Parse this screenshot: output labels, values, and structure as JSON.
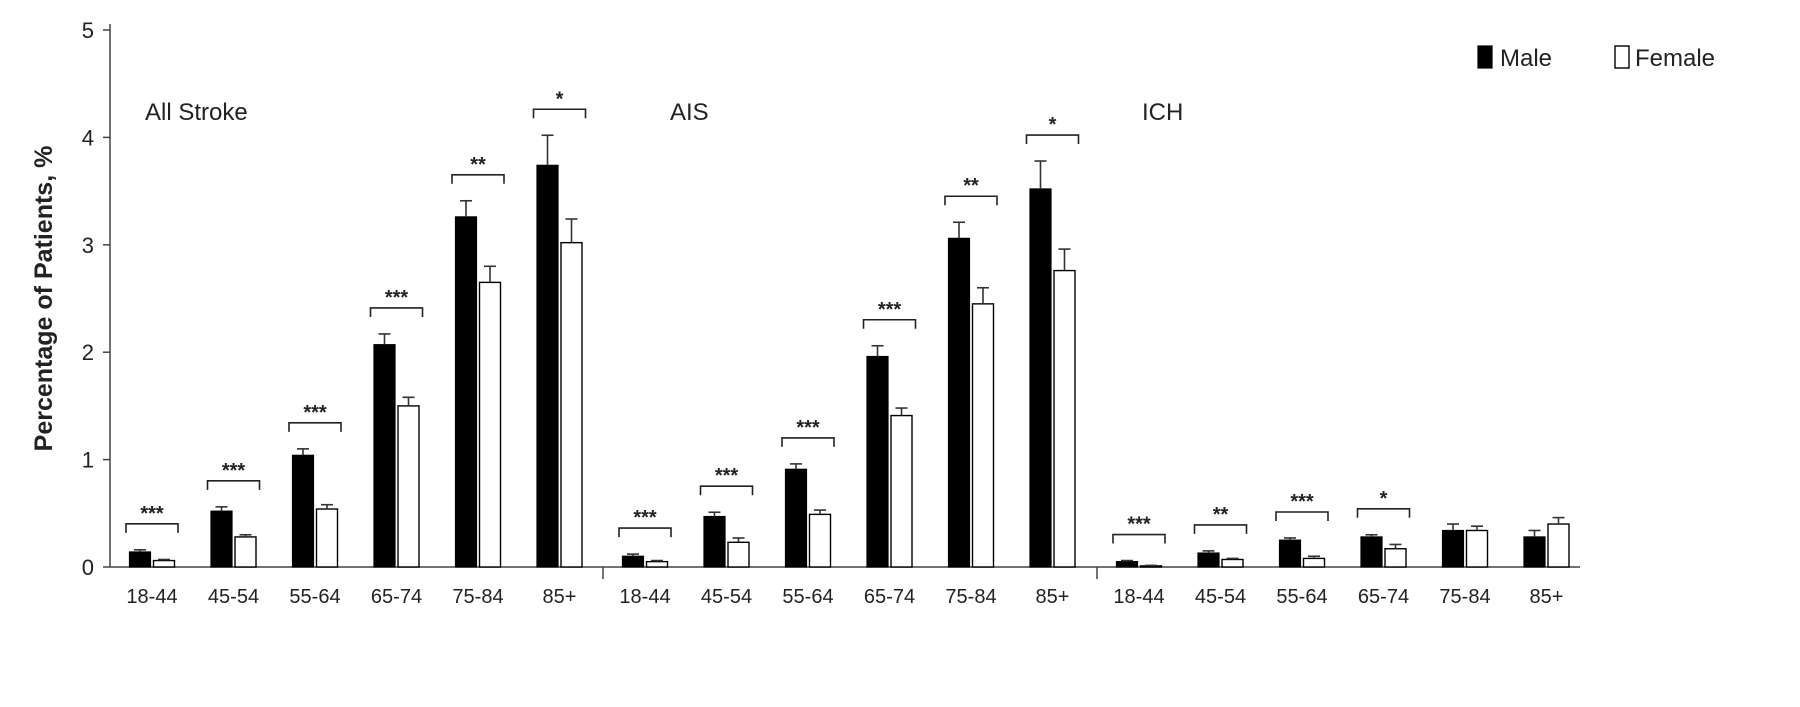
{
  "chart_data": {
    "type": "bar",
    "ylabel": "Percentage of Patients, %",
    "ylim": [
      0,
      5
    ],
    "yticks": [
      "0",
      "1",
      "2",
      "3",
      "4",
      "5"
    ],
    "grid": false,
    "legend": {
      "placement": "top-right",
      "entries": [
        {
          "name": "Male",
          "color": "#000000"
        },
        {
          "name": "Female",
          "color": "#ffffff"
        }
      ]
    },
    "categories": [
      "18-44",
      "45-54",
      "55-64",
      "65-74",
      "75-84",
      "85+"
    ],
    "panels": [
      {
        "title": "All Stroke",
        "series": [
          {
            "name": "Male",
            "values": [
              0.14,
              0.52,
              1.04,
              2.07,
              3.26,
              3.74
            ],
            "errors": [
              0.02,
              0.04,
              0.06,
              0.1,
              0.15,
              0.28
            ]
          },
          {
            "name": "Female",
            "values": [
              0.06,
              0.28,
              0.54,
              1.5,
              2.65,
              3.02
            ],
            "errors": [
              0.01,
              0.02,
              0.04,
              0.08,
              0.15,
              0.22
            ]
          }
        ],
        "significance": [
          "***",
          "***",
          "***",
          "***",
          "**",
          "*"
        ]
      },
      {
        "title": "AIS",
        "series": [
          {
            "name": "Male",
            "values": [
              0.1,
              0.47,
              0.91,
              1.96,
              3.06,
              3.52
            ],
            "errors": [
              0.02,
              0.04,
              0.05,
              0.1,
              0.15,
              0.26
            ]
          },
          {
            "name": "Female",
            "values": [
              0.05,
              0.23,
              0.49,
              1.41,
              2.45,
              2.76
            ],
            "errors": [
              0.01,
              0.04,
              0.04,
              0.07,
              0.15,
              0.2
            ]
          }
        ],
        "significance": [
          "***",
          "***",
          "***",
          "***",
          "**",
          "*"
        ]
      },
      {
        "title": "ICH",
        "series": [
          {
            "name": "Male",
            "values": [
              0.05,
              0.13,
              0.25,
              0.28,
              0.34,
              0.28
            ],
            "errors": [
              0.01,
              0.02,
              0.02,
              0.02,
              0.06,
              0.06
            ]
          },
          {
            "name": "Female",
            "values": [
              0.01,
              0.07,
              0.08,
              0.17,
              0.34,
              0.4
            ],
            "errors": [
              0.005,
              0.01,
              0.02,
              0.04,
              0.04,
              0.06
            ]
          }
        ],
        "significance": [
          "***",
          "**",
          "***",
          "*",
          "",
          ""
        ]
      }
    ]
  }
}
